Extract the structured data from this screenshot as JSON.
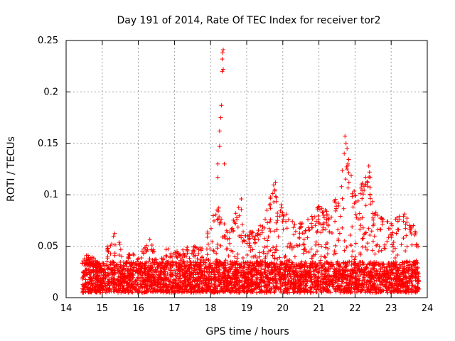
{
  "chart_data": {
    "type": "scatter",
    "title": "Day 191 of 2014, Rate Of TEC Index for receiver tor2",
    "xlabel": "GPS time / hours",
    "ylabel": "ROTI / TECUs",
    "xlim": [
      14,
      24
    ],
    "ylim": [
      0,
      0.25
    ],
    "x_ticks": [
      "14",
      "15",
      "16",
      "17",
      "18",
      "19",
      "20",
      "21",
      "22",
      "23",
      "24"
    ],
    "y_ticks": [
      "0",
      "0.05",
      "0.1",
      "0.15",
      "0.2",
      "0.25"
    ],
    "grid": true,
    "marker": "+",
    "colors": {
      "points": "#ff0000",
      "grid": "#a0a0a0",
      "axes": "#000000"
    },
    "series": [
      {
        "name": "tor2",
        "x_range": [
          14.45,
          23.78
        ],
        "baseline_band": [
          0.005,
          0.035
        ],
        "envelope": [
          [
            14.45,
            0.035
          ],
          [
            14.6,
            0.045
          ],
          [
            15.0,
            0.03
          ],
          [
            15.2,
            0.058
          ],
          [
            15.4,
            0.065
          ],
          [
            15.6,
            0.038
          ],
          [
            15.8,
            0.045
          ],
          [
            16.0,
            0.04
          ],
          [
            16.3,
            0.058
          ],
          [
            16.6,
            0.035
          ],
          [
            16.8,
            0.05
          ],
          [
            17.0,
            0.045
          ],
          [
            17.4,
            0.05
          ],
          [
            17.8,
            0.05
          ],
          [
            18.0,
            0.075
          ],
          [
            18.2,
            0.09
          ],
          [
            18.5,
            0.06
          ],
          [
            18.8,
            0.097
          ],
          [
            19.0,
            0.065
          ],
          [
            19.3,
            0.07
          ],
          [
            19.5,
            0.08
          ],
          [
            19.75,
            0.112
          ],
          [
            20.0,
            0.09
          ],
          [
            20.4,
            0.07
          ],
          [
            20.7,
            0.08
          ],
          [
            21.0,
            0.09
          ],
          [
            21.3,
            0.085
          ],
          [
            21.6,
            0.11
          ],
          [
            21.75,
            0.157
          ],
          [
            22.0,
            0.1
          ],
          [
            22.35,
            0.13
          ],
          [
            22.5,
            0.09
          ],
          [
            22.7,
            0.08
          ],
          [
            23.0,
            0.075
          ],
          [
            23.3,
            0.085
          ],
          [
            23.6,
            0.075
          ],
          [
            23.78,
            0.05
          ]
        ],
        "spikes": [
          [
            18.2,
            0.117
          ],
          [
            18.2,
            0.13
          ],
          [
            18.25,
            0.147
          ],
          [
            18.25,
            0.162
          ],
          [
            18.28,
            0.175
          ],
          [
            18.3,
            0.187
          ],
          [
            18.32,
            0.22
          ],
          [
            18.35,
            0.222
          ],
          [
            18.32,
            0.232
          ],
          [
            18.33,
            0.238
          ],
          [
            18.35,
            0.241
          ],
          [
            18.38,
            0.13
          ],
          [
            21.7,
            0.14
          ],
          [
            21.72,
            0.157
          ],
          [
            21.75,
            0.15
          ],
          [
            21.78,
            0.145
          ],
          [
            21.8,
            0.13
          ],
          [
            21.78,
            0.125
          ],
          [
            22.38,
            0.128
          ],
          [
            22.4,
            0.122
          ],
          [
            22.42,
            0.117
          ],
          [
            19.8,
            0.112
          ],
          [
            19.78,
            0.105
          ],
          [
            19.82,
            0.097
          ],
          [
            18.85,
            0.096
          ]
        ]
      }
    ]
  }
}
